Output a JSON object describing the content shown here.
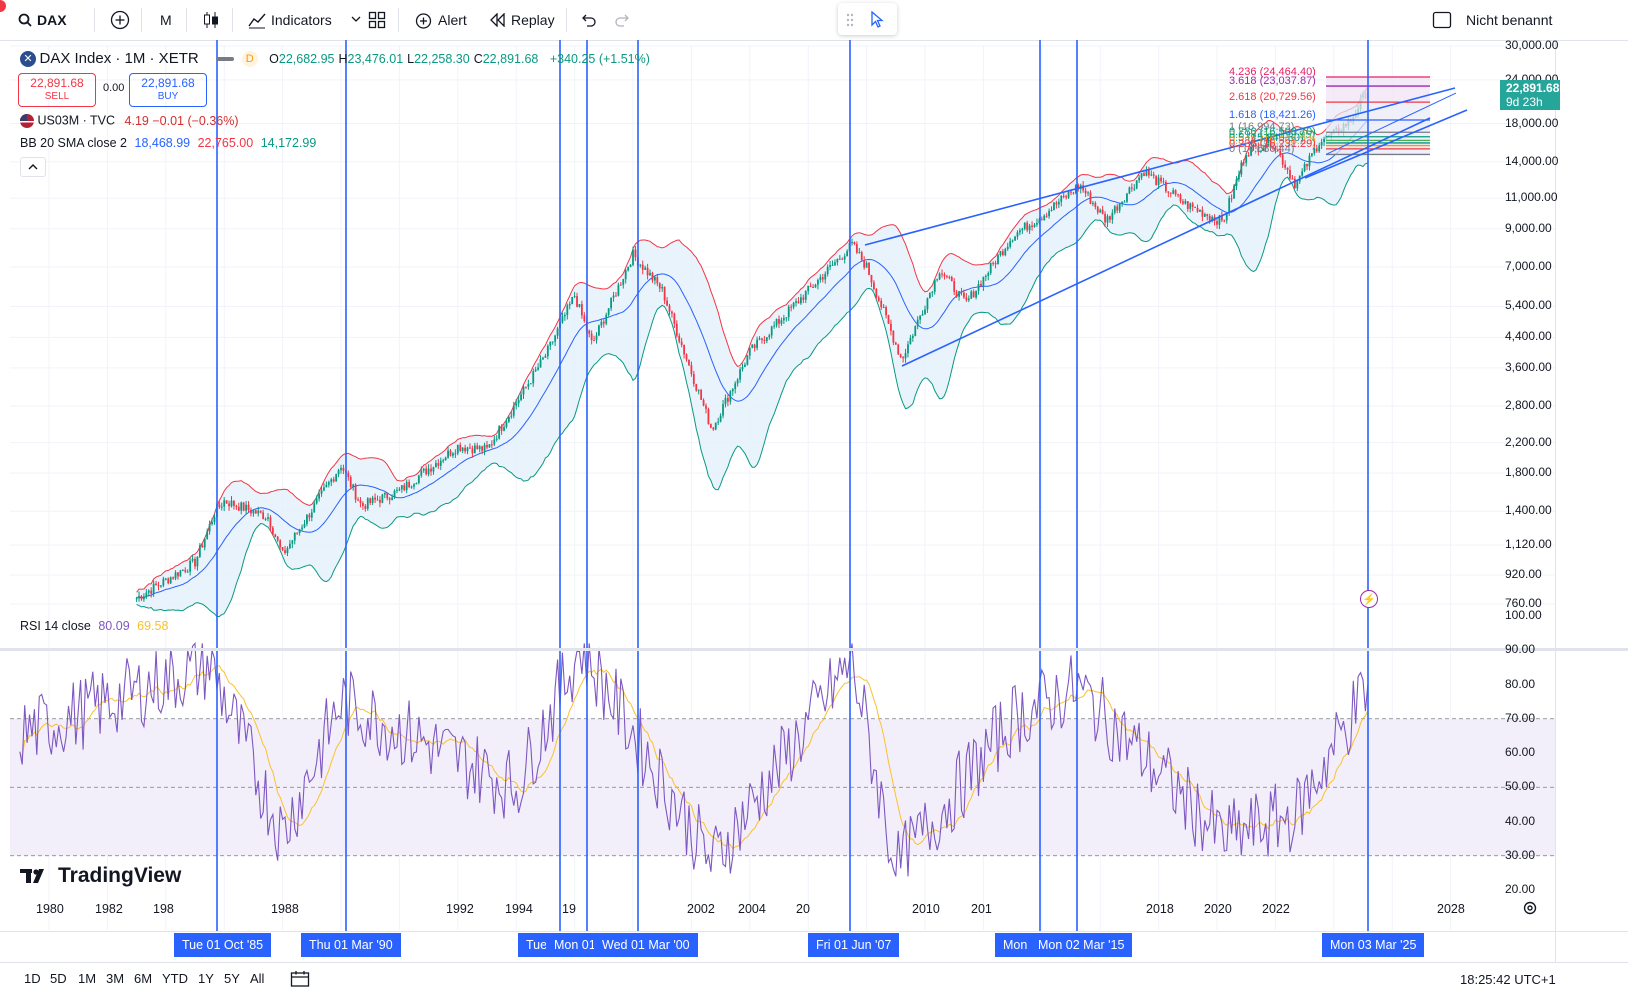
{
  "toolbar": {
    "symbol": "DAX",
    "interval": "M",
    "indicators_label": "Indicators",
    "alert_label": "Alert",
    "replay_label": "Replay",
    "layout_name": "Nicht benannt"
  },
  "legend": {
    "title": "DAX Index · 1M · XETR",
    "badge": "D",
    "ohlc": [
      {
        "k": "O",
        "v": "22,682.95"
      },
      {
        "k": "H",
        "v": "23,476.01"
      },
      {
        "k": "L",
        "v": "22,258.30"
      },
      {
        "k": "C",
        "v": "22,891.68"
      }
    ],
    "change": "+340.25 (+1.51%)",
    "sell_price": "22,891.68",
    "sell_label": "SELL",
    "spread": "0.00",
    "buy_price": "22,891.68",
    "buy_label": "BUY",
    "compare_name": "US03M · TVC",
    "compare_values": "4.19  −0.01 (−0.36%)",
    "bb_name": "BB 20 SMA close 2",
    "bb_basis": "18,468.99",
    "bb_upper": "22,765.00",
    "bb_lower": "14,172.99",
    "rsi_name": "RSI 14 close",
    "rsi_value": "80.09",
    "rsi_ma": "69.58"
  },
  "fib_labels": [
    "4.236 (24,464.40)",
    "3.618 (23,037.87)",
    "2.618 (20,729.56)",
    "1.618 (18,421.26)",
    "1 (16,994.73)",
    "0.786 (16,500.70)",
    "0.618 (16,112.95)",
    "0.5 (15,840.60)",
    "0.382 (15,568.23)",
    "0.236 (15,231.29)",
    "0 (14,686.44)"
  ],
  "price_axis": [
    "30,000.00",
    "24,000.00",
    "18,000.00",
    "14,000.00",
    "11,000.00",
    "9,000.00",
    "7,000.00",
    "5,400.00",
    "4,400.00",
    "3,600.00",
    "2,800.00",
    "2,200.00",
    "1,800.00",
    "1,400.00",
    "1,120.00",
    "920.00",
    "760.00"
  ],
  "current_price": {
    "price": "22,891.68",
    "countdown": "9d 23h"
  },
  "rsi_axis": [
    "100.00",
    "90.00",
    "80.00",
    "70.00",
    "60.00",
    "50.00",
    "40.00",
    "30.00",
    "20.00"
  ],
  "time_axis": [
    "1980",
    "1982",
    "198",
    "1988",
    "1992",
    "1994",
    "19",
    "2002",
    "2004",
    "20",
    "2010",
    "201",
    "2018",
    "2020",
    "2022",
    "2028"
  ],
  "time_tags": [
    "Tue 01 Oct '85",
    "Thu 01 Mar '90",
    "Tue",
    "Mon 01",
    "Wed 01 Mar '00",
    "Fri 01 Jun '07",
    "Mon 0",
    "Mon 02 Mar '15",
    "Mon 03 Mar '25"
  ],
  "watermark": "TradingView",
  "bottom": {
    "ranges": [
      "1D",
      "5D",
      "1M",
      "3M",
      "6M",
      "YTD",
      "1Y",
      "5Y",
      "All"
    ],
    "clock": "18:25:42 UTC+1"
  },
  "colors": {
    "accent": "#2962ff",
    "up": "#089981",
    "down": "#f23645",
    "bb_fill": "#e3f0fb",
    "rsi_line": "#7e57c2",
    "rsi_ma": "#fbc02d",
    "rsi_band": "#f3effa"
  },
  "chart_data": {
    "type": "line",
    "title": "DAX Index · 1M · XETR",
    "y_scale": "log",
    "ylim": [
      700,
      30000
    ],
    "xlim": [
      1979,
      2029
    ],
    "series": [
      {
        "name": "DAX Index",
        "x": [
          1983,
          1985,
          1985.7,
          1986,
          1987.5,
          1988,
          1990,
          1990.7,
          1992,
          1994,
          1995,
          1997,
          1998,
          1998.6,
          2000,
          2001,
          2002.7,
          2004,
          2007.5,
          2008,
          2009.2,
          2010.5,
          2011.4,
          2013,
          2014,
          2015.3,
          2016.2,
          2017.5,
          2018.9,
          2020.2,
          2021,
          2021.9,
          2022.7,
          2023.5,
          2024,
          2024.6,
          2025.2
        ],
        "y": [
          790,
          1000,
          1400,
          1500,
          1350,
          1050,
          1900,
          1450,
          1600,
          2150,
          2100,
          3900,
          5800,
          4200,
          7600,
          6000,
          2400,
          4000,
          8100,
          7000,
          3800,
          6900,
          5500,
          8600,
          9800,
          12000,
          9500,
          13200,
          10600,
          9400,
          15000,
          16000,
          12000,
          16000,
          16800,
          18500,
          22890
        ]
      },
      {
        "name": "BB 20 SMA close 2",
        "x": [
          1984,
          1990,
          1998,
          2000,
          2003,
          2007,
          2009,
          2015,
          2020,
          2025.2
        ],
        "y": [
          980,
          1650,
          4200,
          6300,
          3500,
          7000,
          5000,
          10800,
          12500,
          18469
        ]
      },
      {
        "name": "RSI 14 close",
        "x": [
          1979,
          1985.5,
          1988,
          1990,
          1996,
          1998.2,
          2002.7,
          2007.5,
          2009,
          2013,
          2015.2,
          2020.2,
          2022.7,
          2025.2
        ],
        "y": [
          65,
          86,
          36,
          75,
          50,
          91,
          28,
          87,
          26,
          70,
          79,
          35,
          42,
          80.09
        ]
      }
    ],
    "xlabel": "",
    "ylabel": "",
    "grid": true,
    "legend": "top-left"
  }
}
